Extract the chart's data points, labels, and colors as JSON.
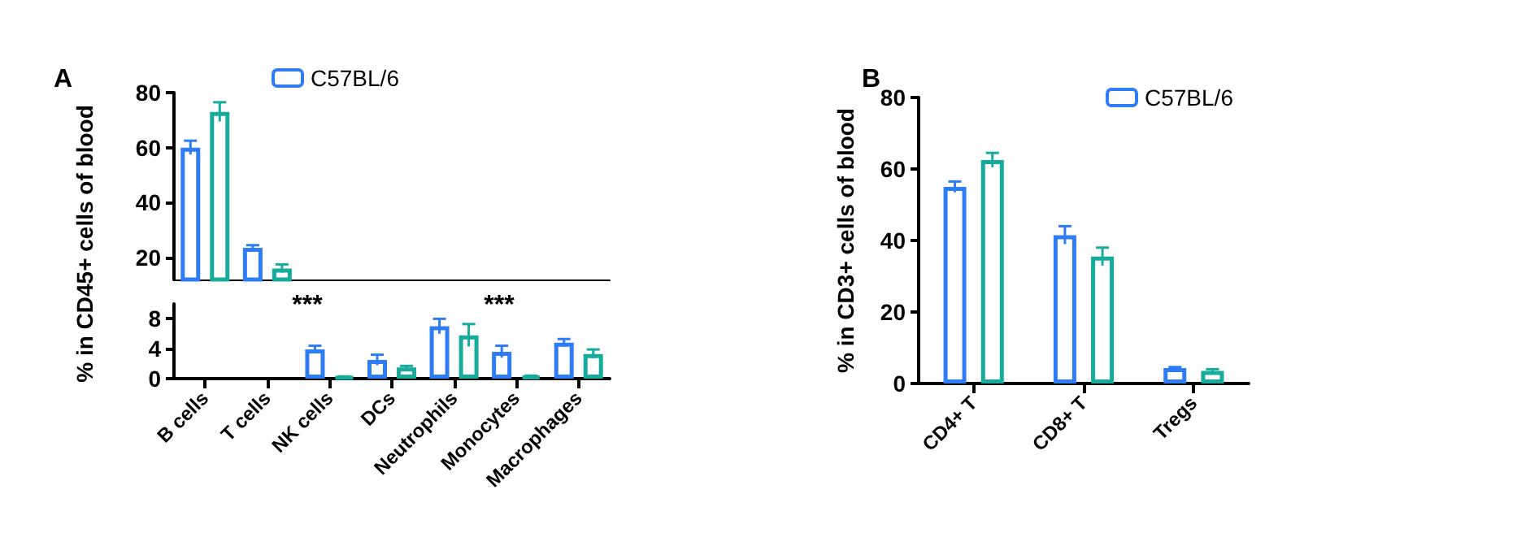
{
  "chart_data": [
    {
      "type": "bar",
      "title": "A",
      "categories": [
        null,
        null,
        null,
        null,
        null,
        null,
        null
      ],
      "ylim": [
        12,
        80
      ],
      "yticks": [
        20,
        40,
        60,
        80
      ],
      "tick_labels": "y",
      "grid": false,
      "legend": "top",
      "series": [
        {
          "name": "C57BL/6",
          "color": "#2f7df6",
          "values": [
            60,
            23.5,
            null,
            null,
            null,
            null,
            null
          ],
          "errors": [
            2.5,
            1,
            null,
            null,
            null,
            null,
            null
          ]
        },
        {
          "color": "#17ab9c",
          "values": [
            73,
            16,
            null,
            null,
            null,
            null,
            null
          ],
          "errors": [
            3.5,
            1.5,
            null,
            null,
            null,
            null,
            null
          ]
        }
      ]
    },
    {
      "type": "bar",
      "ylabel": "% in CD45+ cells of blood",
      "categories": [
        "B cells",
        "T cells",
        "NK cells",
        "DCs",
        "Neutrophils",
        "Monocytes",
        "Macrophages"
      ],
      "ylim": [
        0,
        10
      ],
      "yticks": [
        0,
        4,
        8
      ],
      "grid": false,
      "annotations": [
        "***",
        "***"
      ],
      "series": [
        {
          "color": "#2f7df6",
          "values": [
            null,
            null,
            3.9,
            2.5,
            7,
            3.6,
            4.8
          ],
          "errors": [
            null,
            null,
            0.5,
            0.7,
            1,
            0.8,
            0.5
          ]
        },
        {
          "color": "#17ab9c",
          "values": [
            null,
            null,
            0.2,
            1.5,
            5.8,
            0.3,
            3.3
          ],
          "errors": [
            null,
            null,
            0.1,
            0.2,
            1.5,
            0.1,
            0.6
          ]
        }
      ]
    },
    {
      "type": "bar",
      "title": "B",
      "ylabel": "% in CD3+ cells of blood",
      "categories": [
        "CD4+ T",
        "CD8+ T",
        "Tregs"
      ],
      "ylim": [
        0,
        80
      ],
      "yticks": [
        0,
        20,
        40,
        60,
        80
      ],
      "grid": false,
      "legend": "top right",
      "series": [
        {
          "name": "C57BL/6",
          "color": "#2f7df6",
          "values": [
            55,
            41.5,
            4.3
          ],
          "errors": [
            1.5,
            2.5,
            0.3
          ]
        },
        {
          "color": "#17ab9c",
          "values": [
            62.5,
            35.5,
            3.5
          ],
          "errors": [
            2,
            2.5,
            0.5
          ]
        }
      ]
    }
  ]
}
